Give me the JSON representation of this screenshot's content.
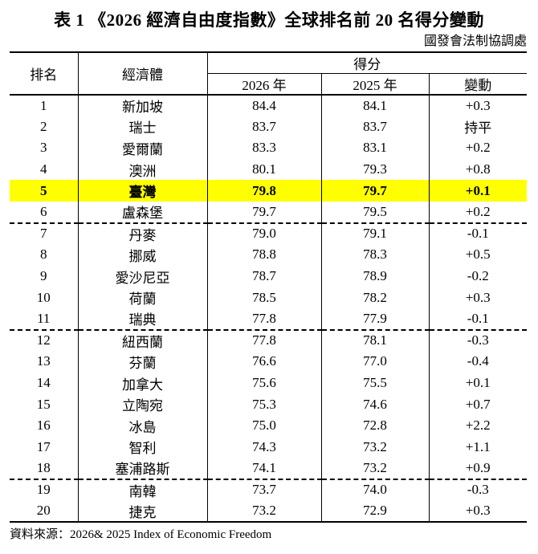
{
  "title": "表 1 《2026 經濟自由度指數》全球排名前 20 名得分變動",
  "subtitle": "國發會法制協調處",
  "source": "資料來源：2026& 2025 Index of Economic Freedom",
  "colors": {
    "highlight_row": "#FFFF00",
    "text": "#000000",
    "background": "#FFFFFF"
  },
  "table": {
    "headers": {
      "rank": "排名",
      "economy": "經濟體",
      "score": "得分",
      "y2026": "2026 年",
      "y2025": "2025 年",
      "change": "變動"
    },
    "rows": [
      {
        "rank": "1",
        "economy": "新加坡",
        "s2026": "84.4",
        "s2025": "84.1",
        "change": "+0.3",
        "highlight": false,
        "group_end": false
      },
      {
        "rank": "2",
        "economy": "瑞士",
        "s2026": "83.7",
        "s2025": "83.7",
        "change": "持平",
        "highlight": false,
        "group_end": false
      },
      {
        "rank": "3",
        "economy": "愛爾蘭",
        "s2026": "83.3",
        "s2025": "83.1",
        "change": "+0.2",
        "highlight": false,
        "group_end": false
      },
      {
        "rank": "4",
        "economy": "澳洲",
        "s2026": "80.1",
        "s2025": "79.3",
        "change": "+0.8",
        "highlight": false,
        "group_end": false
      },
      {
        "rank": "5",
        "economy": "臺灣",
        "s2026": "79.8",
        "s2025": "79.7",
        "change": "+0.1",
        "highlight": true,
        "group_end": false
      },
      {
        "rank": "6",
        "economy": "盧森堡",
        "s2026": "79.7",
        "s2025": "79.5",
        "change": "+0.2",
        "highlight": false,
        "group_end": true
      },
      {
        "rank": "7",
        "economy": "丹麥",
        "s2026": "79.0",
        "s2025": "79.1",
        "change": "-0.1",
        "highlight": false,
        "group_end": false
      },
      {
        "rank": "8",
        "economy": "挪威",
        "s2026": "78.8",
        "s2025": "78.3",
        "change": "+0.5",
        "highlight": false,
        "group_end": false
      },
      {
        "rank": "9",
        "economy": "愛沙尼亞",
        "s2026": "78.7",
        "s2025": "78.9",
        "change": "-0.2",
        "highlight": false,
        "group_end": false
      },
      {
        "rank": "10",
        "economy": "荷蘭",
        "s2026": "78.5",
        "s2025": "78.2",
        "change": "+0.3",
        "highlight": false,
        "group_end": false
      },
      {
        "rank": "11",
        "economy": "瑞典",
        "s2026": "77.8",
        "s2025": "77.9",
        "change": "-0.1",
        "highlight": false,
        "group_end": true
      },
      {
        "rank": "12",
        "economy": "紐西蘭",
        "s2026": "77.8",
        "s2025": "78.1",
        "change": "-0.3",
        "highlight": false,
        "group_end": false
      },
      {
        "rank": "13",
        "economy": "芬蘭",
        "s2026": "76.6",
        "s2025": "77.0",
        "change": "-0.4",
        "highlight": false,
        "group_end": false
      },
      {
        "rank": "14",
        "economy": "加拿大",
        "s2026": "75.6",
        "s2025": "75.5",
        "change": "+0.1",
        "highlight": false,
        "group_end": false
      },
      {
        "rank": "15",
        "economy": "立陶宛",
        "s2026": "75.3",
        "s2025": "74.6",
        "change": "+0.7",
        "highlight": false,
        "group_end": false
      },
      {
        "rank": "16",
        "economy": "冰島",
        "s2026": "75.0",
        "s2025": "72.8",
        "change": "+2.2",
        "highlight": false,
        "group_end": false
      },
      {
        "rank": "17",
        "economy": "智利",
        "s2026": "74.3",
        "s2025": "73.2",
        "change": "+1.1",
        "highlight": false,
        "group_end": false
      },
      {
        "rank": "18",
        "economy": "塞浦路斯",
        "s2026": "74.1",
        "s2025": "73.2",
        "change": "+0.9",
        "highlight": false,
        "group_end": true
      },
      {
        "rank": "19",
        "economy": "南韓",
        "s2026": "73.7",
        "s2025": "74.0",
        "change": "-0.3",
        "highlight": false,
        "group_end": false
      },
      {
        "rank": "20",
        "economy": "捷克",
        "s2026": "73.2",
        "s2025": "72.9",
        "change": "+0.3",
        "highlight": false,
        "group_end": false
      }
    ]
  }
}
